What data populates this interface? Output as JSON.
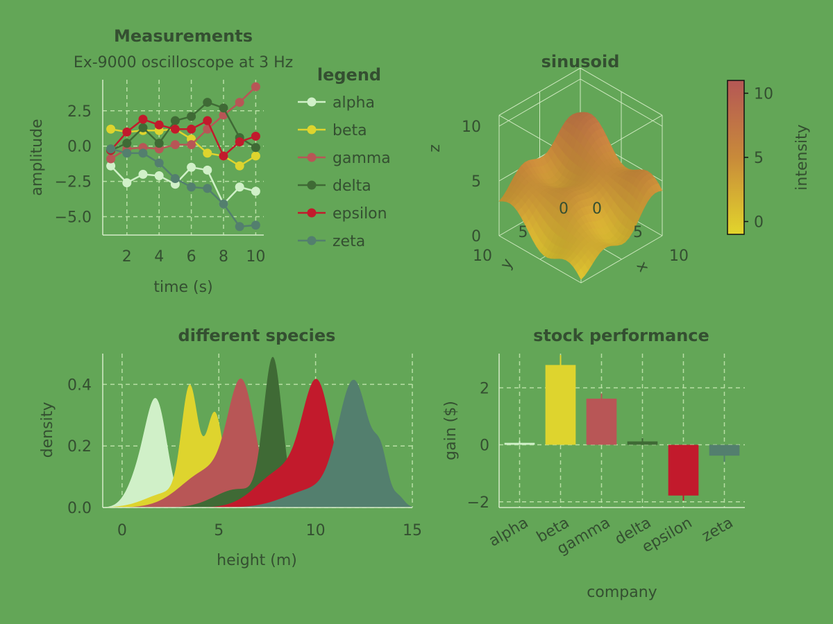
{
  "chart_data": [
    {
      "type": "line",
      "title": "Measurements",
      "subtitle": "Ex-9000 oscilloscope at 3 Hz",
      "xlabel": "time (s)",
      "ylabel": "amplitude",
      "xlim": [
        0.5,
        10.5
      ],
      "ylim": [
        -6.3,
        4.7
      ],
      "xticks": [
        2,
        4,
        6,
        8,
        10
      ],
      "yticks": [
        -5.0,
        -2.5,
        0.0,
        2.5
      ],
      "grid": true,
      "legend_title": "legend",
      "legend_position": "right",
      "x": [
        1,
        2,
        3,
        4,
        5,
        6,
        7,
        8,
        9,
        10
      ],
      "series": [
        {
          "name": "alpha",
          "color": "#d0f0c8",
          "values": [
            -1.4,
            -2.6,
            -2.0,
            -2.1,
            -2.7,
            -1.5,
            -1.7,
            -4.1,
            -2.9,
            -3.2
          ]
        },
        {
          "name": "beta",
          "color": "#ded42e",
          "values": [
            1.2,
            1.0,
            1.1,
            1.1,
            1.2,
            0.5,
            -0.5,
            -0.7,
            -1.4,
            -0.7
          ]
        },
        {
          "name": "gamma",
          "color": "#b85656",
          "values": [
            -0.9,
            -0.2,
            -0.1,
            -0.2,
            0.1,
            0.1,
            1.2,
            2.2,
            3.1,
            4.2
          ]
        },
        {
          "name": "delta",
          "color": "#3f6a35",
          "values": [
            -0.3,
            0.2,
            1.3,
            0.2,
            1.8,
            2.1,
            3.1,
            2.7,
            0.6,
            -0.1
          ]
        },
        {
          "name": "epsilon",
          "color": "#c21a2c",
          "values": [
            -0.3,
            1.0,
            1.9,
            1.5,
            1.2,
            1.2,
            1.8,
            -0.7,
            0.3,
            0.7
          ]
        },
        {
          "name": "zeta",
          "color": "#537f6e",
          "values": [
            -0.2,
            -0.5,
            -0.5,
            -1.2,
            -2.3,
            -2.9,
            -3.0,
            -4.1,
            -5.7,
            -5.6
          ]
        }
      ]
    },
    {
      "type": "surface",
      "title": "sinusoid",
      "xlabel": "x",
      "ylabel": "y",
      "zlabel": "z",
      "xlim": [
        0,
        10
      ],
      "ylim": [
        0,
        10
      ],
      "zlim": [
        0,
        11
      ],
      "xticks": [
        0,
        5,
        10
      ],
      "yticks": [
        0,
        5,
        10
      ],
      "zticks": [
        0,
        5,
        10
      ],
      "colorbar_label": "intensity",
      "colorbar_ticks": [
        0,
        5,
        10
      ],
      "colorbar_range": [
        -1,
        11
      ],
      "colormap": [
        "#e2d52c",
        "#c88a3a",
        "#b55755"
      ]
    },
    {
      "type": "area",
      "title": "different species",
      "xlabel": "height (m)",
      "ylabel": "density",
      "xlim": [
        -1,
        15
      ],
      "ylim": [
        0,
        0.5
      ],
      "xticks": [
        0,
        5,
        10,
        15
      ],
      "yticks": [
        "0.0",
        "0.2",
        "0.4"
      ],
      "grid": true,
      "series": [
        {
          "name": "alpha",
          "color": "#d0f0c8",
          "components": [
            [
              1.8,
              0.55,
              0.32
            ],
            [
              0.9,
              0.6,
              0.1
            ]
          ]
        },
        {
          "name": "beta",
          "color": "#ded42e",
          "components": [
            [
              3.5,
              0.42,
              0.36
            ],
            [
              4.8,
              0.45,
              0.3
            ],
            [
              2.5,
              1.2,
              0.05
            ]
          ]
        },
        {
          "name": "gamma",
          "color": "#b85656",
          "components": [
            [
              6.2,
              0.7,
              0.36
            ],
            [
              4.5,
              1.4,
              0.12
            ]
          ]
        },
        {
          "name": "delta",
          "color": "#3f6a35",
          "components": [
            [
              7.8,
              0.48,
              0.47
            ],
            [
              6.0,
              1.2,
              0.06
            ]
          ]
        },
        {
          "name": "epsilon",
          "color": "#c21a2c",
          "components": [
            [
              10.1,
              0.75,
              0.37
            ],
            [
              8.3,
              1.3,
              0.12
            ]
          ]
        },
        {
          "name": "zeta",
          "color": "#537f6e",
          "components": [
            [
              12.0,
              0.8,
              0.39
            ],
            [
              13.4,
              0.35,
              0.12
            ],
            [
              10.0,
              1.5,
              0.06
            ],
            [
              14.3,
              0.3,
              0.03
            ]
          ]
        }
      ]
    },
    {
      "type": "bar",
      "title": "stock performance",
      "xlabel": "company",
      "ylabel": "gain ($)",
      "ylim": [
        -2.2,
        3.2
      ],
      "yticks": [
        "−2",
        "0",
        "2"
      ],
      "ytick_values": [
        -2,
        0,
        2
      ],
      "grid": true,
      "categories": [
        "alpha",
        "beta",
        "gamma",
        "delta",
        "epsilon",
        "zeta"
      ],
      "values": [
        0.07,
        2.8,
        1.62,
        0.12,
        -1.78,
        -0.38
      ],
      "errors": [
        0.06,
        0.35,
        0.18,
        0.12,
        0.18,
        0.22
      ],
      "colors": [
        "#d0f0c8",
        "#ded42e",
        "#b85656",
        "#3f6a35",
        "#c21a2c",
        "#537f6e"
      ]
    }
  ]
}
